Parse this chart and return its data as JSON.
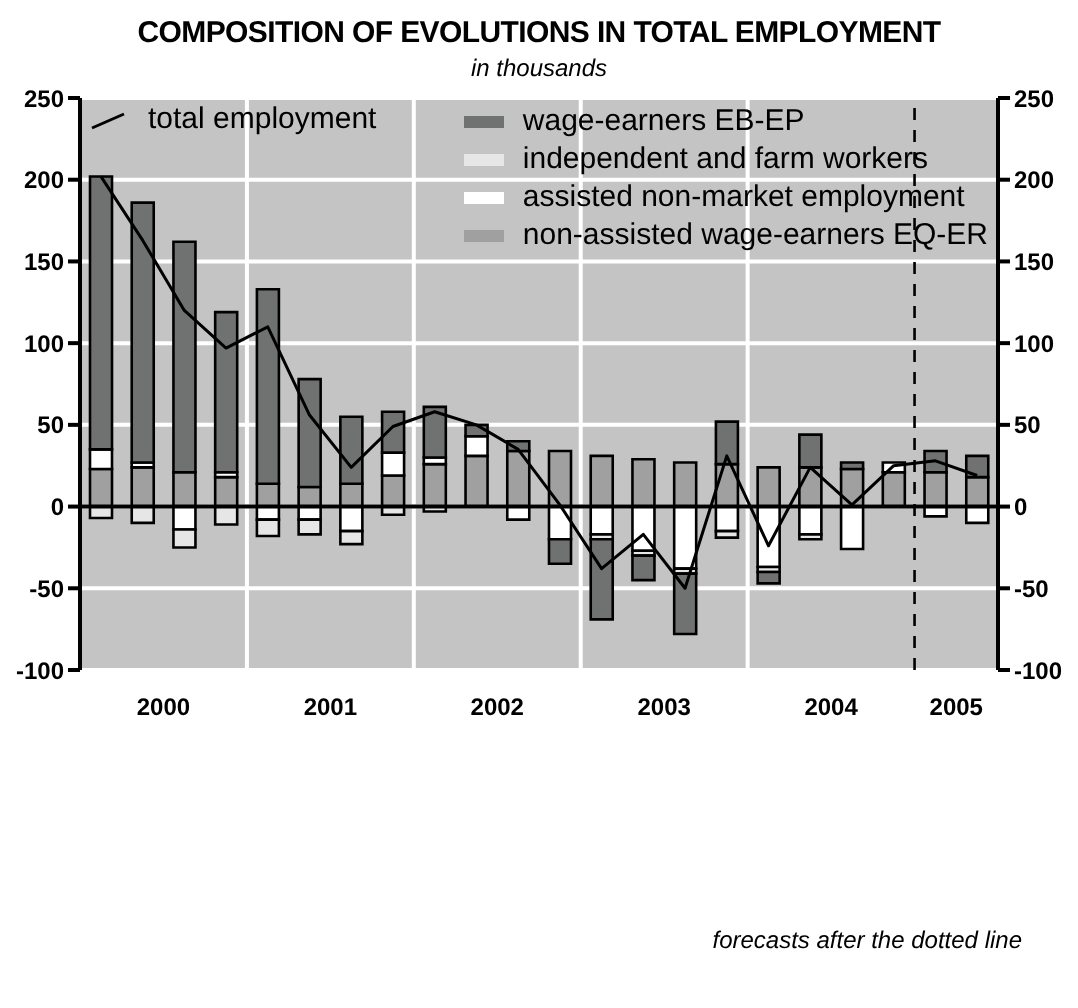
{
  "chart_data": {
    "type": "bar",
    "title": "COMPOSITION OF EVOLUTIONS IN TOTAL EMPLOYMENT",
    "subtitle": "in thousands",
    "stacked": true,
    "x": [
      2000.125,
      2000.375,
      2000.625,
      2000.875,
      2001.125,
      2001.375,
      2001.625,
      2001.875,
      2002.125,
      2002.375,
      2002.625,
      2002.875,
      2003.125,
      2003.375,
      2003.625,
      2003.875,
      2004.125,
      2004.375,
      2004.625,
      2004.875,
      2005.125,
      2005.375
    ],
    "series": [
      {
        "name": "total employment",
        "type": "line",
        "color": "#000000",
        "values": [
          202,
          163,
          120,
          97,
          110,
          56,
          24,
          49,
          58,
          50,
          35,
          1,
          -38,
          -17,
          -50,
          31,
          -24,
          24,
          1,
          25,
          28,
          19
        ]
      },
      {
        "name": "non-assisted wage-earners EQ-ER",
        "color": "#a0a0a0",
        "values": [
          23,
          24,
          21,
          18,
          14,
          12,
          14,
          19,
          26,
          31,
          34,
          34,
          31,
          29,
          27,
          26,
          24,
          24,
          23,
          21,
          21,
          18
        ]
      },
      {
        "name": "assisted non-market employment",
        "color": "#ffffff",
        "values": [
          12,
          3,
          -14,
          3,
          -8,
          -8,
          -15,
          14,
          4,
          12,
          -8,
          -20,
          -17,
          -27,
          -38,
          -15,
          -37,
          -17,
          -26,
          6,
          -6,
          -10
        ]
      },
      {
        "name": "independent and farm workers",
        "color": "#e6e6e6",
        "values": [
          -7,
          -10,
          -11,
          -11,
          -10,
          -9,
          -8,
          -5,
          -3,
          null,
          null,
          null,
          -3,
          -3,
          -3,
          -4,
          -3,
          -3,
          null,
          null,
          null,
          null
        ]
      },
      {
        "name": "wage-earners EB-EP",
        "color": "#707272",
        "values": [
          167,
          159,
          141,
          98,
          119,
          66,
          41,
          25,
          31,
          7,
          6,
          -15,
          -49,
          -15,
          -37,
          26,
          -7,
          20,
          4,
          null,
          13,
          13
        ]
      }
    ],
    "xlim": [
      2000,
      2005.5
    ],
    "xticks": [
      {
        "value": 2000.5,
        "label": "2000"
      },
      {
        "value": 2001,
        "label": null
      },
      {
        "value": 2001.5,
        "label": "2001"
      },
      {
        "value": 2002,
        "label": null
      },
      {
        "value": 2002.5,
        "label": "2002"
      },
      {
        "value": 2003,
        "label": null
      },
      {
        "value": 2003.5,
        "label": "2003"
      },
      {
        "value": 2004,
        "label": null
      },
      {
        "value": 2004.5,
        "label": "2004"
      },
      {
        "value": 2005.25,
        "label": "2005"
      }
    ],
    "ylim": [
      -100,
      250
    ],
    "yticks": [
      -100,
      -50,
      0,
      50,
      100,
      150,
      200,
      250
    ],
    "y2lim": [
      -100,
      250
    ],
    "y2ticks": [
      -100,
      -50,
      0,
      50,
      100,
      150,
      200,
      250
    ],
    "grid": true,
    "legend": "top",
    "ref_lines": [
      {
        "axis": "x",
        "value": 2005,
        "color": "#000000",
        "line_style": "dashed"
      }
    ],
    "annotations": [
      "forecasts after the dotted line"
    ]
  }
}
